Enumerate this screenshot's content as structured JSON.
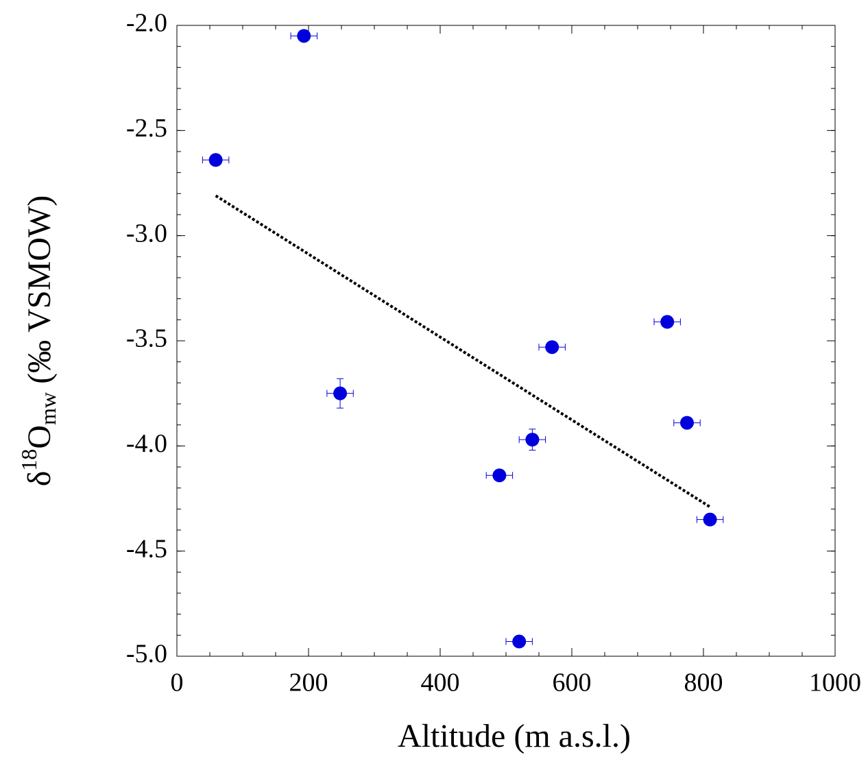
{
  "chart_data": {
    "type": "scatter",
    "x_label": "Altitude (m a.s.l.)",
    "y_label": {
      "parts": [
        "δ",
        "18",
        "O",
        "mw",
        " (‰ VSMOW)"
      ]
    },
    "x": [
      193,
      59,
      248,
      490,
      540,
      570,
      520,
      745,
      775,
      810
    ],
    "y": [
      -2.05,
      -2.64,
      -3.75,
      -4.14,
      -3.97,
      -3.53,
      -4.93,
      -3.41,
      -3.89,
      -4.35
    ],
    "x_error": [
      20,
      20,
      20,
      20,
      20,
      20,
      20,
      20,
      20,
      20
    ],
    "y_error": [
      null,
      null,
      0.07,
      null,
      0.05,
      null,
      null,
      null,
      null,
      null
    ],
    "color": "#0000dd",
    "trend": {
      "x": [
        59,
        810
      ],
      "y": [
        -2.81,
        -4.29
      ],
      "color": "#000000",
      "style": "dotted"
    },
    "xlim": [
      0,
      1000
    ],
    "ylim": [
      -5.0,
      -2.0
    ],
    "xticks": [
      0,
      200,
      400,
      600,
      800,
      1000
    ],
    "yticks": [
      {
        "value": -2.0,
        "label": "-2.0"
      },
      {
        "value": -2.5,
        "label": "-2.5"
      },
      {
        "value": -3.0,
        "label": "-3.0"
      },
      {
        "value": -3.5,
        "label": "-3.5"
      },
      {
        "value": -4.0,
        "label": "-4.0"
      },
      {
        "value": -4.5,
        "label": "-4.5"
      },
      {
        "value": -5.0,
        "label": "-5.0"
      }
    ],
    "minor_ticks": {
      "x": 50,
      "y": 0.1
    },
    "grid": false
  }
}
